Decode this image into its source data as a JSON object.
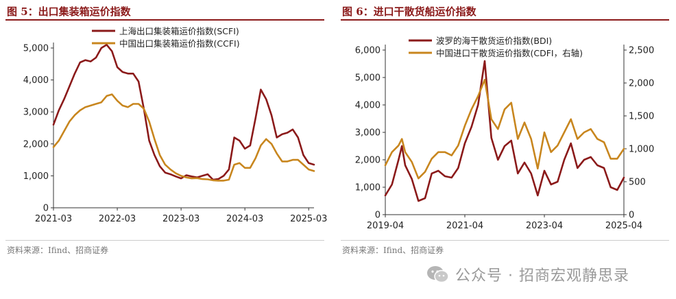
{
  "left": {
    "fig_title": "图 5：出口集装箱运价指数",
    "source": "资料来源：Ifind、招商证券"
  },
  "right": {
    "fig_title": "图 6：进口干散货船运价指数",
    "source": "资料来源：Ifind、招商证券"
  },
  "watermark": {
    "icon": "wechat-icon",
    "text": "公众号 · 招商宏观静思录"
  },
  "colors": {
    "dark_red": "#8b1a1a",
    "gold": "#c8861e"
  },
  "chart_data": [
    {
      "type": "line",
      "title": "",
      "xlabel": "",
      "ylabel": "",
      "x_ticks": [
        "2021-03",
        "2022-03",
        "2023-03",
        "2024-03",
        "2025-03"
      ],
      "y_ticks": [
        "0",
        "1,000",
        "2,000",
        "3,000",
        "4,000",
        "5,000"
      ],
      "ylim": [
        0,
        5000
      ],
      "legend_position": "top",
      "series": [
        {
          "name": "上海出口集装箱运价指数(SCFI)",
          "color": "#8b1a1a",
          "x": [
            "2021-03",
            "2021-04",
            "2021-05",
            "2021-06",
            "2021-07",
            "2021-08",
            "2021-09",
            "2021-10",
            "2021-11",
            "2021-12",
            "2022-01",
            "2022-02",
            "2022-03",
            "2022-04",
            "2022-05",
            "2022-06",
            "2022-07",
            "2022-08",
            "2022-09",
            "2022-10",
            "2022-11",
            "2022-12",
            "2023-01",
            "2023-02",
            "2023-03",
            "2023-04",
            "2023-05",
            "2023-06",
            "2023-07",
            "2023-08",
            "2023-09",
            "2023-10",
            "2023-11",
            "2023-12",
            "2024-01",
            "2024-02",
            "2024-03",
            "2024-04",
            "2024-05",
            "2024-06",
            "2024-07",
            "2024-08",
            "2024-09",
            "2024-10",
            "2024-11",
            "2024-12",
            "2025-01",
            "2025-02",
            "2025-03",
            "2025-04"
          ],
          "values": [
            2600,
            3050,
            3400,
            3800,
            4200,
            4550,
            4620,
            4580,
            4700,
            5000,
            5100,
            4900,
            4400,
            4250,
            4200,
            4200,
            3950,
            3100,
            2100,
            1650,
            1300,
            1100,
            1050,
            980,
            920,
            1020,
            980,
            950,
            1000,
            1050,
            880,
            900,
            1000,
            1200,
            2200,
            2100,
            1850,
            1950,
            2800,
            3700,
            3400,
            2900,
            2200,
            2300,
            2350,
            2450,
            2200,
            1650,
            1400,
            1350
          ]
        },
        {
          "name": "中国出口集装箱运价指数(CCFI)",
          "color": "#c8861e",
          "x": [
            "2021-03",
            "2021-04",
            "2021-05",
            "2021-06",
            "2021-07",
            "2021-08",
            "2021-09",
            "2021-10",
            "2021-11",
            "2021-12",
            "2022-01",
            "2022-02",
            "2022-03",
            "2022-04",
            "2022-05",
            "2022-06",
            "2022-07",
            "2022-08",
            "2022-09",
            "2022-10",
            "2022-11",
            "2022-12",
            "2023-01",
            "2023-02",
            "2023-03",
            "2023-04",
            "2023-05",
            "2023-06",
            "2023-07",
            "2023-08",
            "2023-09",
            "2023-10",
            "2023-11",
            "2023-12",
            "2024-01",
            "2024-02",
            "2024-03",
            "2024-04",
            "2024-05",
            "2024-06",
            "2024-07",
            "2024-08",
            "2024-09",
            "2024-10",
            "2024-11",
            "2024-12",
            "2025-01",
            "2025-02",
            "2025-03",
            "2025-04"
          ],
          "values": [
            1900,
            2100,
            2400,
            2700,
            2900,
            3050,
            3150,
            3200,
            3250,
            3300,
            3500,
            3550,
            3350,
            3200,
            3150,
            3250,
            3250,
            3100,
            2700,
            2150,
            1650,
            1350,
            1200,
            1080,
            1000,
            950,
            920,
            930,
            900,
            890,
            860,
            850,
            850,
            880,
            1350,
            1400,
            1250,
            1250,
            1550,
            1950,
            2150,
            2000,
            1700,
            1450,
            1450,
            1500,
            1500,
            1350,
            1200,
            1150
          ]
        }
      ]
    },
    {
      "type": "line",
      "title": "",
      "xlabel": "",
      "ylabel": "",
      "ylabel_right": "",
      "x_ticks": [
        "2019-04",
        "2021-04",
        "2023-04",
        "2025-04"
      ],
      "y_ticks": [
        "0",
        "1,000",
        "2,000",
        "3,000",
        "4,000",
        "5,000",
        "6,000"
      ],
      "y2_ticks": [
        "0",
        "500",
        "1,000",
        "1,500",
        "2,000",
        "2,500"
      ],
      "ylim": [
        0,
        6000
      ],
      "y2lim": [
        0,
        2500
      ],
      "legend_position": "top",
      "series": [
        {
          "name": "波罗的海干散货运价指数(BDI)",
          "color": "#8b1a1a",
          "axis": "left",
          "x": [
            "2019-04",
            "2019-06",
            "2019-08",
            "2019-09",
            "2019-10",
            "2019-12",
            "2020-02",
            "2020-04",
            "2020-06",
            "2020-08",
            "2020-10",
            "2020-12",
            "2021-02",
            "2021-04",
            "2021-06",
            "2021-08",
            "2021-10",
            "2021-12",
            "2022-02",
            "2022-04",
            "2022-06",
            "2022-08",
            "2022-10",
            "2022-12",
            "2023-02",
            "2023-04",
            "2023-06",
            "2023-08",
            "2023-10",
            "2023-12",
            "2024-02",
            "2024-04",
            "2024-06",
            "2024-08",
            "2024-10",
            "2024-12",
            "2025-02",
            "2025-04"
          ],
          "values": [
            700,
            1100,
            2000,
            2500,
            1800,
            1300,
            500,
            600,
            1500,
            1600,
            1400,
            1350,
            1700,
            2600,
            3200,
            4000,
            5600,
            2800,
            2000,
            2500,
            2700,
            1500,
            1900,
            1500,
            700,
            1600,
            1100,
            1200,
            2000,
            2600,
            1700,
            2000,
            2100,
            1800,
            1700,
            1000,
            900,
            1350
          ]
        },
        {
          "name": "中国进口干散货运价指数(CDFI，右轴)",
          "color": "#c8861e",
          "axis": "right",
          "x": [
            "2019-04",
            "2019-06",
            "2019-08",
            "2019-09",
            "2019-10",
            "2019-12",
            "2020-02",
            "2020-04",
            "2020-06",
            "2020-08",
            "2020-10",
            "2020-12",
            "2021-02",
            "2021-04",
            "2021-06",
            "2021-08",
            "2021-10",
            "2021-12",
            "2022-02",
            "2022-04",
            "2022-06",
            "2022-08",
            "2022-10",
            "2022-12",
            "2023-02",
            "2023-04",
            "2023-06",
            "2023-08",
            "2023-10",
            "2023-12",
            "2024-02",
            "2024-04",
            "2024-06",
            "2024-08",
            "2024-10",
            "2024-12",
            "2025-02",
            "2025-04"
          ],
          "values": [
            750,
            950,
            1050,
            1150,
            950,
            800,
            550,
            650,
            850,
            950,
            950,
            900,
            1050,
            1350,
            1600,
            1800,
            2050,
            1450,
            1300,
            1600,
            1700,
            1150,
            1400,
            1150,
            700,
            1250,
            950,
            1050,
            1250,
            1450,
            1150,
            1250,
            1300,
            1150,
            1100,
            850,
            850,
            1000
          ]
        }
      ]
    }
  ]
}
